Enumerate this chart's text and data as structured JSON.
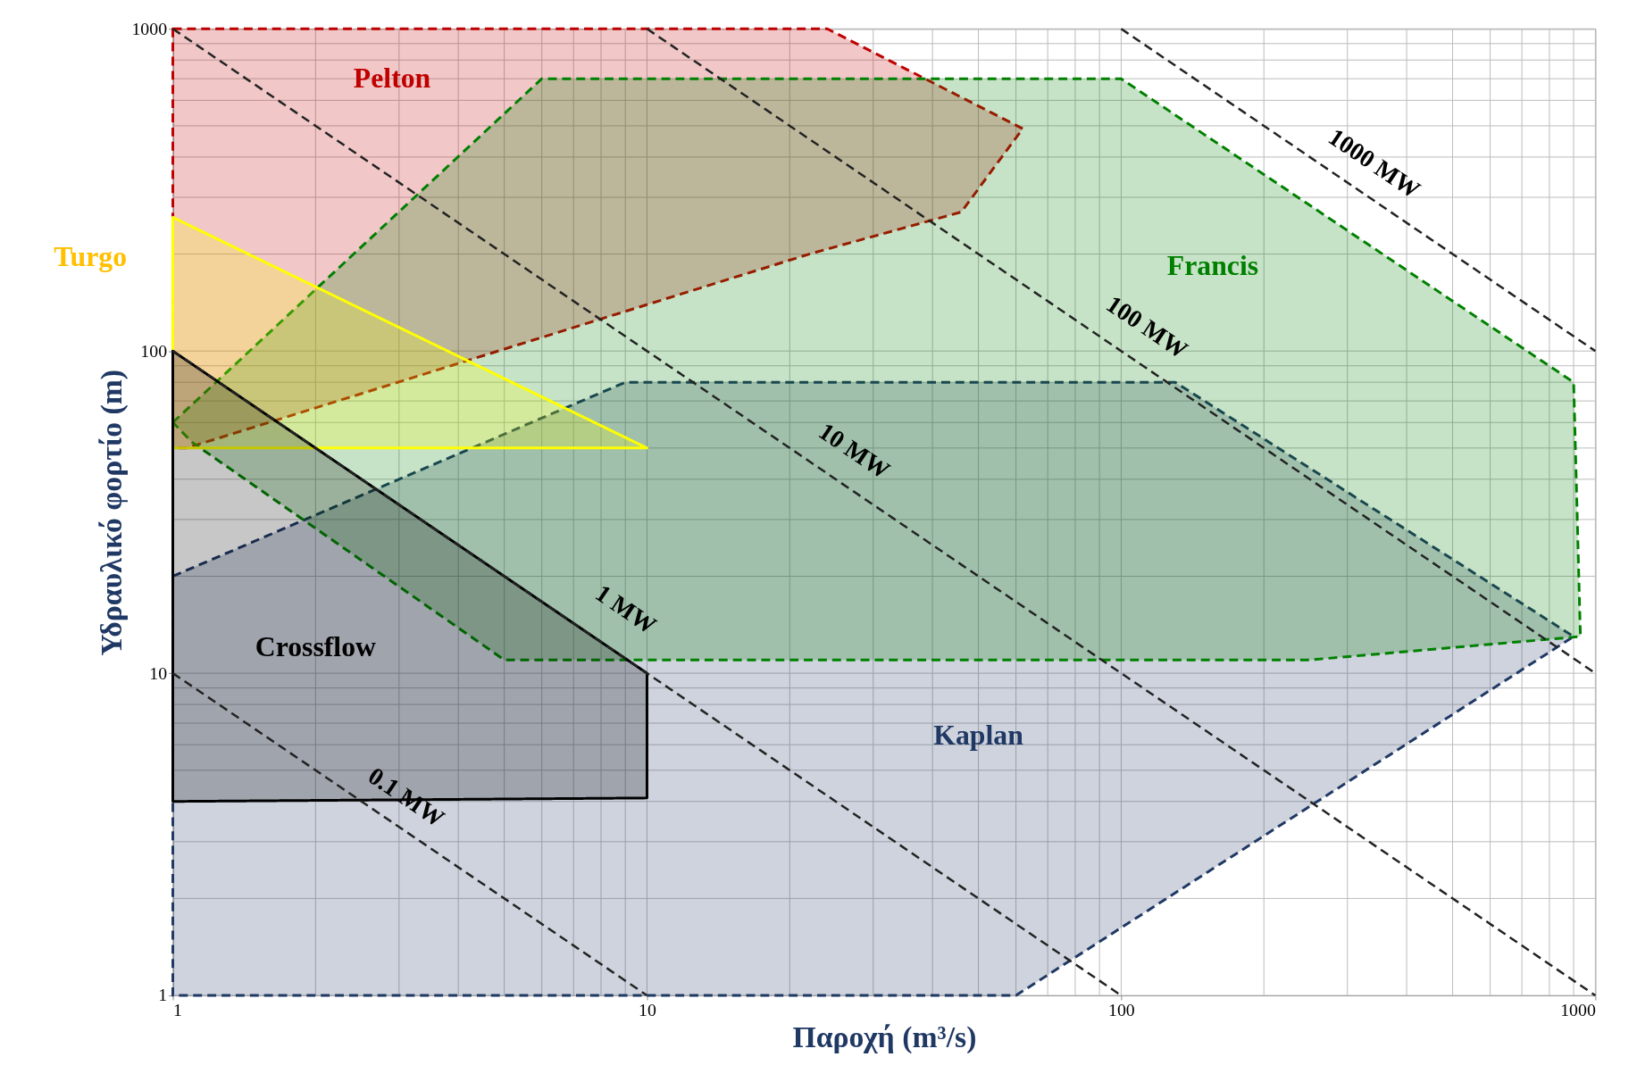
{
  "chart_data": {
    "type": "area",
    "xlabel": "Παροχή (m³/s)",
    "ylabel": "Υδραυλικό φορτίο (m)",
    "log": "xy",
    "grid": true,
    "xlim": [
      1,
      1000
    ],
    "ylim": [
      1,
      1000
    ],
    "xticks": [
      1,
      10,
      100,
      1000
    ],
    "yticks": [
      1,
      10,
      100,
      1000
    ],
    "series": [
      {
        "name": "Kaplan",
        "type": "area",
        "color": "#1f3864",
        "line_style": "dashed",
        "x": [
          1,
          9,
          130,
          900,
          60,
          1
        ],
        "values": [
          20,
          80,
          80,
          13,
          1,
          1
        ]
      },
      {
        "name": "Pelton",
        "type": "area",
        "color": "#c00000",
        "line_style": "dashed",
        "x": [
          1,
          24,
          62,
          46,
          22,
          1.07,
          1
        ],
        "values": [
          1000,
          1000,
          490,
          270,
          200,
          50,
          50
        ]
      },
      {
        "name": "Francis",
        "type": "area",
        "color": "#008000",
        "line_style": "dashed",
        "x": [
          1,
          6,
          100,
          900,
          930,
          250,
          5,
          1.1
        ],
        "values": [
          60,
          700,
          700,
          80,
          13,
          11,
          11,
          52
        ]
      },
      {
        "name": "Turgo",
        "type": "area",
        "color": "#ffff00",
        "line_style": "solid",
        "x": [
          1,
          10,
          1
        ],
        "values": [
          260,
          50,
          50
        ]
      },
      {
        "name": "Crossflow",
        "type": "area",
        "color": "#000000",
        "line_style": "solid",
        "x": [
          1,
          10,
          10,
          1
        ],
        "values": [
          100,
          10,
          4.1,
          4
        ]
      },
      {
        "name": "0.1 MW",
        "type": "line",
        "color": "#222222",
        "line_style": "dashed",
        "x": [
          1,
          10
        ],
        "values": [
          10,
          1
        ]
      },
      {
        "name": "1 MW",
        "type": "line",
        "color": "#222222",
        "line_style": "dashed",
        "x": [
          1,
          100
        ],
        "values": [
          100,
          1
        ]
      },
      {
        "name": "10 MW",
        "type": "line",
        "color": "#222222",
        "line_style": "dashed",
        "x": [
          1,
          1000
        ],
        "values": [
          1000,
          1
        ]
      },
      {
        "name": "100 MW",
        "type": "line",
        "color": "#222222",
        "line_style": "dashed",
        "x": [
          10,
          1000
        ],
        "values": [
          1000,
          10
        ]
      },
      {
        "name": "1000 MW",
        "type": "line",
        "color": "#222222",
        "line_style": "dashed",
        "x": [
          100,
          1000
        ],
        "values": [
          1000,
          100
        ]
      }
    ]
  }
}
